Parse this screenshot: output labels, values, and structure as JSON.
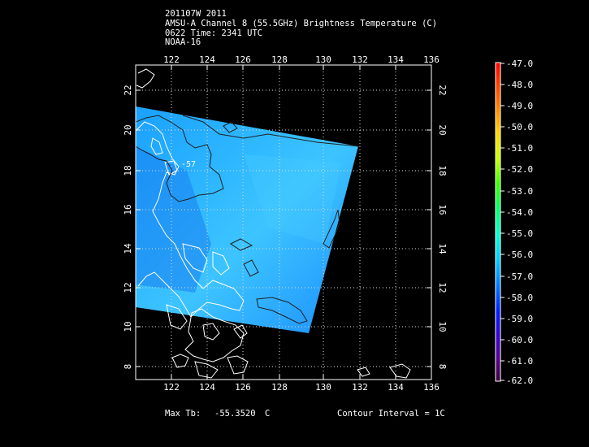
{
  "header": {
    "line1": "201107W 2011",
    "line2": "AMSU-A Channel 8 (55.5GHz) Brightness Temperature (C)",
    "line3": "0622 Time: 2341 UTC",
    "line4": "NOAA-16"
  },
  "map": {
    "lon_ticks": [
      "122",
      "124",
      "126",
      "128",
      "130",
      "132",
      "134",
      "136"
    ],
    "lat_ticks": [
      "22",
      "20",
      "18",
      "16",
      "14",
      "12",
      "10",
      "8"
    ],
    "contour_label": "-57"
  },
  "colorbar": {
    "labels": [
      "-47.0",
      "-48.0",
      "-49.0",
      "-50.0",
      "-51.0",
      "-52.0",
      "-53.0",
      "-54.0",
      "-55.0",
      "-56.0",
      "-57.0",
      "-58.0",
      "-59.0",
      "-60.0",
      "-61.0",
      "-62.0"
    ]
  },
  "footer": {
    "max_tb_label": "Max Tb:",
    "max_tb_value": "-55.3520",
    "max_tb_unit": "C",
    "contour_interval": "Contour Interval = 1C"
  }
}
